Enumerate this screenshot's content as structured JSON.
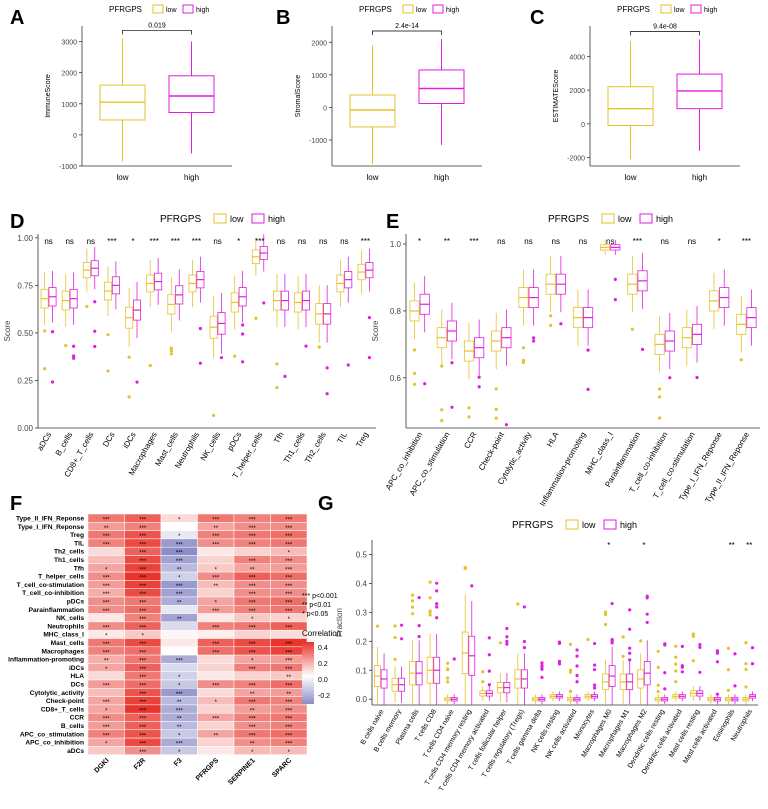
{
  "colors": {
    "low": "#e6c229",
    "high": "#e01ee0",
    "heat_high": "#e8342b",
    "heat_mid": "#ffffff",
    "heat_low": "#8c8cc8"
  },
  "panels": {
    "A": "A",
    "B": "B",
    "C": "C",
    "D": "D",
    "E": "E",
    "F": "F",
    "G": "G"
  },
  "legend": {
    "title": "PFRGPS",
    "low": "low",
    "high": "high"
  },
  "chart_data": [
    {
      "id": "A",
      "type": "box",
      "ylabel": "ImmuneScore",
      "categories": [
        "low",
        "high"
      ],
      "ylim": [
        -1000,
        3500
      ],
      "yticks": [
        -1000,
        0,
        1000,
        2000,
        3000
      ],
      "pvalue": "0.019",
      "boxes": [
        {
          "group": "low",
          "min": -850,
          "q1": 480,
          "median": 1050,
          "q3": 1600,
          "max": 3100
        },
        {
          "group": "high",
          "min": -600,
          "q1": 720,
          "median": 1250,
          "q3": 1900,
          "max": 3000
        }
      ]
    },
    {
      "id": "B",
      "type": "box",
      "ylabel": "StromalScore",
      "categories": [
        "low",
        "high"
      ],
      "ylim": [
        -1800,
        2500
      ],
      "yticks": [
        -1000,
        0,
        1000,
        2000
      ],
      "pvalue": "2.4e-14",
      "boxes": [
        {
          "group": "low",
          "min": -1750,
          "q1": -600,
          "median": -80,
          "q3": 380,
          "max": 1900
        },
        {
          "group": "high",
          "min": -1150,
          "q1": 120,
          "median": 580,
          "q3": 1150,
          "max": 2100
        }
      ]
    },
    {
      "id": "C",
      "type": "box",
      "ylabel": "ESTIMATEScore",
      "categories": [
        "low",
        "high"
      ],
      "ylim": [
        -2500,
        5800
      ],
      "yticks": [
        -2000,
        0,
        2000,
        4000
      ],
      "pvalue": "9.4e-08",
      "boxes": [
        {
          "group": "low",
          "min": -2100,
          "q1": -100,
          "median": 900,
          "q3": 2200,
          "max": 4900
        },
        {
          "group": "high",
          "min": -1600,
          "q1": 900,
          "median": 1950,
          "q3": 2950,
          "max": 5000
        }
      ]
    },
    {
      "id": "D",
      "type": "grouped_box",
      "ylabel": "Score",
      "ylim": [
        0,
        1.02
      ],
      "yticks": [
        0.0,
        0.25,
        0.5,
        0.75,
        1.0
      ],
      "ytick_labels": [
        "0.00",
        "0.25",
        "0.50",
        "0.75",
        "1.00"
      ],
      "categories": [
        "aDCs",
        "B_cells",
        "CD8+_T_cells",
        "DCs",
        "iDCs",
        "Macrophages",
        "Mast_cells",
        "Neutrophils",
        "NK_cells",
        "pDCs",
        "T_helper_cells",
        "Tfh",
        "Th1_cells",
        "Th2_cells",
        "TIL",
        "Treg"
      ],
      "significance": [
        "ns",
        "ns",
        "ns",
        "***",
        "*",
        "***",
        "***",
        "***",
        "ns",
        "*",
        "***",
        "ns",
        "ns",
        "ns",
        "ns",
        "***"
      ],
      "low_medians": [
        0.68,
        0.67,
        0.83,
        0.72,
        0.58,
        0.76,
        0.65,
        0.76,
        0.53,
        0.66,
        0.9,
        0.67,
        0.66,
        0.6,
        0.76,
        0.82
      ],
      "high_medians": [
        0.69,
        0.68,
        0.84,
        0.75,
        0.62,
        0.77,
        0.7,
        0.78,
        0.55,
        0.69,
        0.92,
        0.67,
        0.67,
        0.6,
        0.78,
        0.83
      ]
    },
    {
      "id": "E",
      "type": "grouped_box",
      "ylabel": "Score",
      "ylim": [
        0.45,
        1.03
      ],
      "yticks": [
        0.6,
        0.8,
        1.0
      ],
      "ytick_labels": [
        "0.6",
        "0.8",
        "1.0"
      ],
      "categories": [
        "APC_co_inhibition",
        "APC_co_stimulation",
        "CCR",
        "Check-point",
        "Cytolytic_activity",
        "HLA",
        "Inflammation-promoting",
        "MHC_class_I",
        "Parainflammation",
        "T_cell_co-inhibition",
        "T_cell_co-stimulation",
        "Type_I_IFN_Reponse",
        "Type_II_IFN_Reponse"
      ],
      "significance": [
        "*",
        "**",
        "***",
        "ns",
        "ns",
        "ns",
        "ns",
        "ns",
        "***",
        "ns",
        "ns",
        "*",
        "***"
      ],
      "low_medians": [
        0.8,
        0.72,
        0.68,
        0.71,
        0.84,
        0.88,
        0.78,
        0.99,
        0.88,
        0.7,
        0.72,
        0.83,
        0.76
      ],
      "high_medians": [
        0.82,
        0.74,
        0.69,
        0.72,
        0.84,
        0.88,
        0.78,
        0.99,
        0.89,
        0.71,
        0.73,
        0.84,
        0.78
      ]
    },
    {
      "id": "F",
      "type": "heatmap",
      "legend_title": "Correlation",
      "legend_ticks": [
        "0.4",
        "0.2",
        "0.0",
        "-0.2"
      ],
      "sig_legend": [
        "*** p<0.001",
        "** p<0.01",
        "* p<0.05"
      ],
      "columns": [
        "DGKI",
        "F2R",
        "F3",
        "PFRGPS",
        "SERPINE1",
        "SPARC"
      ],
      "rows": [
        "Type_II_IFN_Reponse",
        "Type_I_IFN_Reponse",
        "Treg",
        "TIL",
        "Th2_cells",
        "Th1_cells",
        "Tfh",
        "T_helper_cells",
        "T_cell_co-stimulation",
        "T_cell_co-inhibition",
        "pDCs",
        "Parainflammation",
        "NK_cells",
        "Neutrophils",
        "MHC_class_I",
        "Mast_cells",
        "Macrophages",
        "Inflammation-promoting",
        "iDCs",
        "HLA",
        "DCs",
        "Cytolytic_activity",
        "Check-point",
        "CD8+_T_cells",
        "CCR",
        "B_cells",
        "APC_co_stimulation",
        "APC_co_inhibition",
        "aDCs"
      ],
      "values": [
        [
          0.3,
          0.35,
          0.08,
          0.3,
          0.28,
          0.3
        ],
        [
          0.22,
          0.28,
          0.0,
          0.2,
          0.25,
          0.25
        ],
        [
          0.3,
          0.38,
          -0.05,
          0.28,
          0.3,
          0.32
        ],
        [
          0.28,
          0.4,
          -0.22,
          0.25,
          0.28,
          0.3
        ],
        [
          0.08,
          0.35,
          -0.25,
          0.05,
          0.1,
          0.15
        ],
        [
          0.15,
          0.4,
          -0.2,
          0.1,
          0.28,
          0.25
        ],
        [
          0.2,
          0.42,
          -0.15,
          0.12,
          0.2,
          0.22
        ],
        [
          0.25,
          0.45,
          -0.1,
          0.25,
          0.35,
          0.32
        ],
        [
          0.22,
          0.42,
          -0.22,
          0.15,
          0.25,
          0.25
        ],
        [
          0.18,
          0.4,
          -0.2,
          0.1,
          0.25,
          0.25
        ],
        [
          0.25,
          0.3,
          -0.18,
          0.2,
          0.3,
          0.32
        ],
        [
          0.25,
          0.32,
          -0.05,
          0.22,
          0.28,
          0.3
        ],
        [
          0.05,
          0.28,
          -0.2,
          0.05,
          0.12,
          0.1
        ],
        [
          0.25,
          0.35,
          -0.08,
          0.28,
          0.3,
          0.35
        ],
        [
          0.05,
          0.12,
          0.02,
          0.04,
          0.1,
          0.08
        ],
        [
          0.3,
          0.4,
          0.05,
          0.35,
          0.4,
          0.45
        ],
        [
          0.28,
          0.32,
          0.0,
          0.32,
          0.38,
          0.42
        ],
        [
          0.18,
          0.3,
          -0.18,
          0.08,
          0.2,
          0.22
        ],
        [
          0.2,
          0.35,
          -0.08,
          0.1,
          0.28,
          0.3
        ],
        [
          0.08,
          0.3,
          -0.1,
          0.05,
          0.1,
          0.12
        ],
        [
          0.22,
          0.32,
          -0.12,
          0.25,
          0.28,
          0.32
        ],
        [
          0.15,
          0.38,
          -0.22,
          0.08,
          0.2,
          0.22
        ],
        [
          0.2,
          0.42,
          -0.15,
          0.15,
          0.3,
          0.28
        ],
        [
          0.2,
          0.45,
          -0.18,
          0.1,
          0.22,
          0.25
        ],
        [
          0.25,
          0.35,
          -0.18,
          0.2,
          0.28,
          0.3
        ],
        [
          0.22,
          0.35,
          -0.15,
          0.1,
          0.25,
          0.28
        ],
        [
          0.28,
          0.38,
          -0.12,
          0.2,
          0.3,
          0.32
        ],
        [
          0.2,
          0.4,
          -0.18,
          0.1,
          0.25,
          0.28
        ],
        [
          0.12,
          0.25,
          -0.12,
          0.05,
          0.15,
          0.15
        ]
      ],
      "stars": [
        [
          "***",
          "***",
          "*",
          "***",
          "***",
          "***"
        ],
        [
          "**",
          "***",
          "",
          "**",
          "***",
          "***"
        ],
        [
          "***",
          "***",
          "*",
          "***",
          "***",
          "***"
        ],
        [
          "***",
          "***",
          "***",
          "***",
          "***",
          "***"
        ],
        [
          "",
          "***",
          "***",
          "",
          "",
          "*"
        ],
        [
          "",
          "***",
          "***",
          "",
          "***",
          "***"
        ],
        [
          "*",
          "***",
          "**",
          "*",
          "**",
          "***"
        ],
        [
          "***",
          "***",
          "*",
          "***",
          "***",
          "***"
        ],
        [
          "***",
          "***",
          "***",
          "**",
          "***",
          "***"
        ],
        [
          "***",
          "***",
          "***",
          "",
          "***",
          "***"
        ],
        [
          "***",
          "***",
          "**",
          "*",
          "***",
          "***"
        ],
        [
          "***",
          "***",
          "",
          "***",
          "***",
          "***"
        ],
        [
          "",
          "***",
          "**",
          "",
          "*",
          "*"
        ],
        [
          "***",
          "***",
          "",
          "***",
          "***",
          "***"
        ],
        [
          "*",
          "*",
          "",
          "",
          "",
          ""
        ],
        [
          "***",
          "***",
          "",
          "***",
          "***",
          "***"
        ],
        [
          "***",
          "***",
          "",
          "***",
          "***",
          "***"
        ],
        [
          "**",
          "***",
          "***",
          "",
          "*",
          "***"
        ],
        [
          "*",
          "***",
          "",
          "",
          "***",
          "***"
        ],
        [
          "",
          "***",
          "*",
          "",
          "",
          "**"
        ],
        [
          "***",
          "***",
          "*",
          "***",
          "***",
          "***"
        ],
        [
          "",
          "***",
          "***",
          "",
          "**",
          "**"
        ],
        [
          "***",
          "***",
          "**",
          "*",
          "***",
          "***"
        ],
        [
          "*",
          "***",
          "***",
          "",
          "**",
          "***"
        ],
        [
          "***",
          "***",
          "**",
          "***",
          "***",
          "***"
        ],
        [
          "***",
          "***",
          "**",
          "",
          "***",
          "***"
        ],
        [
          "***",
          "***",
          "*",
          "**",
          "***",
          "***"
        ],
        [
          "*",
          "***",
          "***",
          "",
          "**",
          "***"
        ],
        [
          "",
          "***",
          "*",
          "",
          "*",
          "*"
        ]
      ]
    },
    {
      "id": "G",
      "type": "grouped_box",
      "ylabel": "Fraction",
      "ylim": [
        -0.02,
        0.55
      ],
      "yticks": [
        0.0,
        0.1,
        0.2,
        0.3,
        0.4,
        0.5
      ],
      "ytick_labels": [
        "0.0",
        "0.1",
        "0.2",
        "0.3",
        "0.4",
        "0.5"
      ],
      "categories": [
        "B cells naive",
        "B cells memory",
        "Plasma cells",
        "T cells CD8",
        "T cells CD4 naive",
        "T cells CD4 memory resting",
        "T cells CD4 memory activated",
        "T cells follicular helper",
        "T cells regulatory (Tregs)",
        "T cells gamma delta",
        "NK cells resting",
        "NK cells activated",
        "Monocytes",
        "Macrophages M0",
        "Macrophages M1",
        "Macrophages M2",
        "Dendritic cells resting",
        "Dendritic cells activated",
        "Mast cells resting",
        "Mast cells activated",
        "Eosinophils",
        "Neutrophils"
      ],
      "significance": [
        "",
        "",
        "",
        "",
        "",
        "",
        "",
        "",
        "",
        "",
        "",
        "",
        "",
        "*",
        "",
        "*",
        "",
        "",
        "",
        "",
        "**",
        "**"
      ],
      "low_medians": [
        0.08,
        0.05,
        0.09,
        0.1,
        0.0,
        0.16,
        0.02,
        0.04,
        0.07,
        0.0,
        0.01,
        0.0,
        0.01,
        0.06,
        0.06,
        0.07,
        0.0,
        0.01,
        0.02,
        0.0,
        0.0,
        0.0
      ],
      "high_medians": [
        0.07,
        0.05,
        0.09,
        0.1,
        0.0,
        0.15,
        0.02,
        0.04,
        0.07,
        0.0,
        0.01,
        0.0,
        0.01,
        0.08,
        0.06,
        0.09,
        0.0,
        0.01,
        0.02,
        0.0,
        0.0,
        0.01
      ]
    }
  ]
}
